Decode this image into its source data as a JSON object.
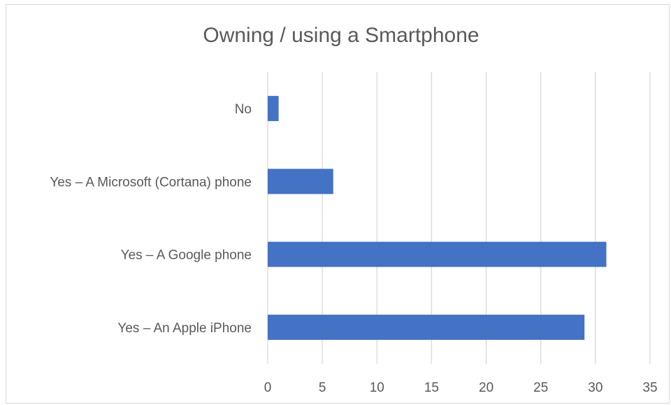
{
  "chart_data": {
    "type": "bar",
    "orientation": "horizontal",
    "title": "Owning / using a Smartphone",
    "categories": [
      "No",
      "Yes – A Microsoft (Cortana) phone",
      "Yes – A Google phone",
      "Yes – An Apple iPhone"
    ],
    "values": [
      1,
      6,
      31,
      29
    ],
    "xlim": [
      0,
      35
    ],
    "xticks": [
      0,
      5,
      10,
      15,
      20,
      25,
      30,
      35
    ],
    "xlabel": "",
    "ylabel": "",
    "grid": "vertical",
    "legend": "none",
    "bar_color": "#4472c4",
    "grid_color": "#d9d9d9"
  }
}
